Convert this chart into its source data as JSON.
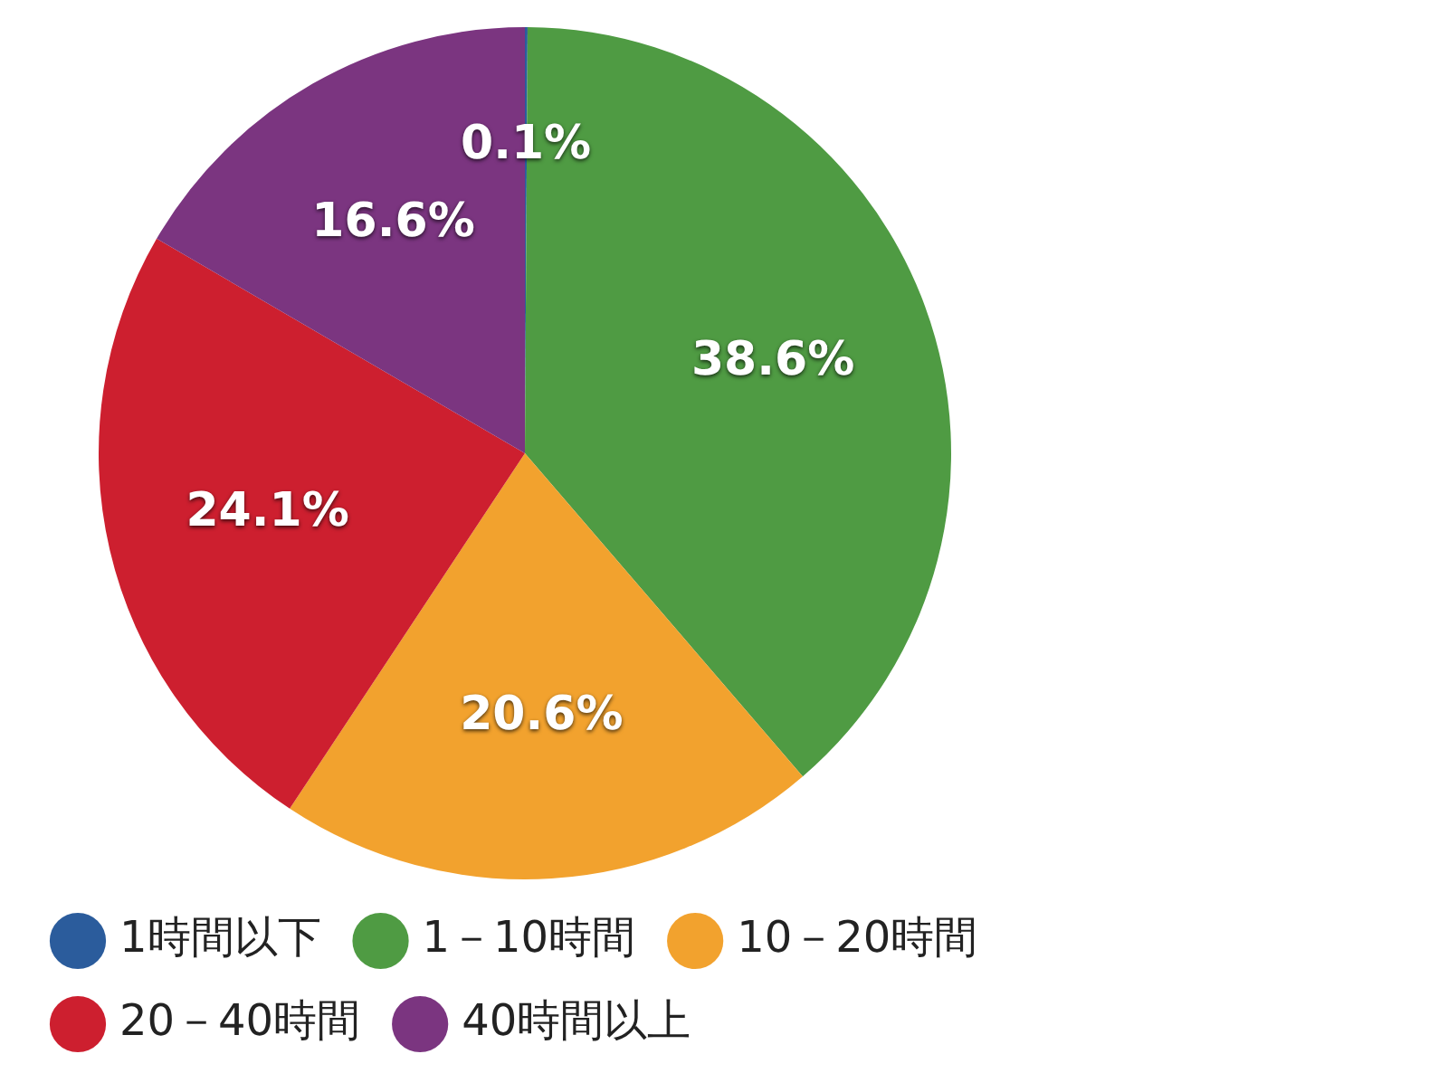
{
  "chart_data": {
    "type": "pie",
    "categories": [
      "1時間以下",
      "1－10時間",
      "10－20時間",
      "20－40時間",
      "40時間以上"
    ],
    "values": [
      0.1,
      38.6,
      20.6,
      24.1,
      16.6
    ],
    "colors": [
      "#2b5c9c",
      "#4f9b43",
      "#f2a22e",
      "#cd1f2f",
      "#7b3580"
    ],
    "value_labels": [
      "0.1%",
      "38.6%",
      "20.6%",
      "24.1%",
      "16.6%"
    ],
    "legend": "bottom"
  }
}
